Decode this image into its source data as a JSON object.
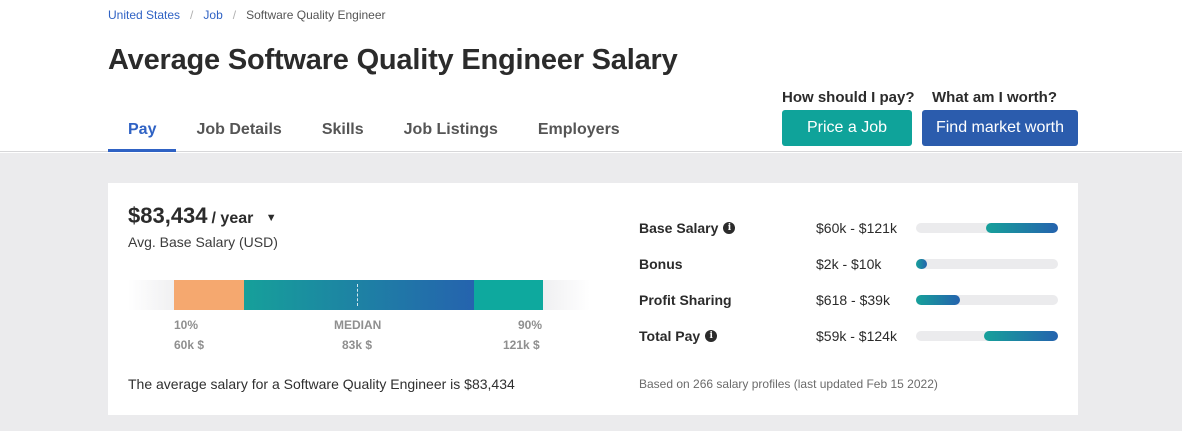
{
  "breadcrumb": [
    "United States",
    "Job",
    "Software Quality Engineer"
  ],
  "page_title": "Average Software Quality Engineer Salary",
  "tabs": [
    "Pay",
    "Job Details",
    "Skills",
    "Job Listings",
    "Employers"
  ],
  "cta": {
    "price_question": "How should I pay?",
    "price_button": "Price a Job",
    "worth_question": "What am I worth?",
    "worth_button": "Find market worth"
  },
  "salary": {
    "amount": "$83,434",
    "period": "/ year",
    "avg_label": "Avg. Base Salary (USD)",
    "sentence": "The average salary for a Software Quality Engineer is $83,434"
  },
  "distribution": {
    "low": {
      "label": "10%",
      "value": "60k $"
    },
    "median": {
      "label": "MEDIAN",
      "value": "83k $"
    },
    "high": {
      "label": "90%",
      "value": "121k $"
    }
  },
  "pay_breakdown": [
    {
      "label": "Base Salary",
      "info": true,
      "range": "$60k - $121k",
      "bar_start": 0.49,
      "bar_end": 1.0
    },
    {
      "label": "Bonus",
      "info": false,
      "range": "$2k - $10k",
      "bar_start": 0.0,
      "bar_end": 0.08
    },
    {
      "label": "Profit Sharing",
      "info": false,
      "range": "$618 - $39k",
      "bar_start": 0.0,
      "bar_end": 0.31
    },
    {
      "label": "Total Pay",
      "info": true,
      "range": "$59k - $124k",
      "bar_start": 0.48,
      "bar_end": 1.0
    }
  ],
  "footnote": "Based on 266 salary profiles (last updated Feb 15 2022)",
  "colors": {
    "accent_blue": "#2f62c4",
    "teal": "#0fa39a",
    "navy": "#2b5cad",
    "orange": "#f5a86f"
  }
}
